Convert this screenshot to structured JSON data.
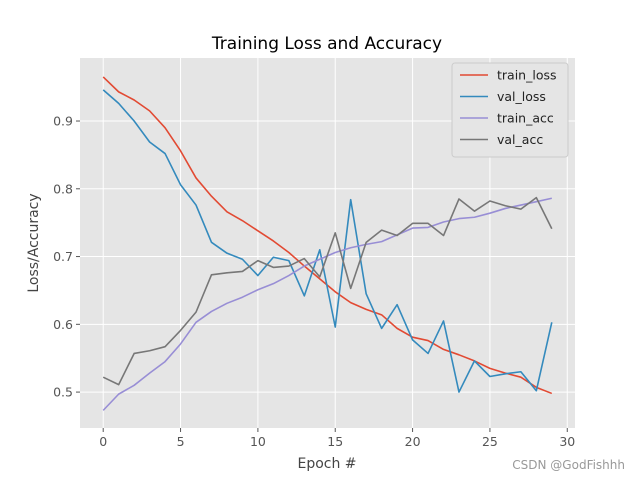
{
  "chart_data": {
    "type": "line",
    "title": "Training Loss and Accuracy",
    "xlabel": "Epoch #",
    "ylabel": "Loss/Accuracy",
    "xlim": [
      -1.5,
      30.5
    ],
    "ylim": [
      0.447,
      0.993
    ],
    "xticks": [
      "0",
      "5",
      "10",
      "15",
      "20",
      "25",
      "30"
    ],
    "yticks": [
      "0.5",
      "0.6",
      "0.7",
      "0.8",
      "0.9"
    ],
    "grid": true,
    "legend_position": "top-right",
    "x": [
      0,
      1,
      2,
      3,
      4,
      5,
      6,
      7,
      8,
      9,
      10,
      11,
      12,
      13,
      14,
      15,
      16,
      17,
      18,
      19,
      20,
      21,
      22,
      23,
      24,
      25,
      26,
      27,
      28,
      29
    ],
    "series": [
      {
        "name": "train_loss",
        "color": "#E24A33",
        "values": [
          0.965,
          0.943,
          0.931,
          0.915,
          0.89,
          0.856,
          0.816,
          0.789,
          0.766,
          0.753,
          0.738,
          0.723,
          0.706,
          0.686,
          0.667,
          0.648,
          0.632,
          0.622,
          0.614,
          0.594,
          0.581,
          0.576,
          0.563,
          0.555,
          0.546,
          0.535,
          0.528,
          0.522,
          0.507,
          0.498
        ]
      },
      {
        "name": "val_loss",
        "color": "#348ABD",
        "values": [
          0.946,
          0.926,
          0.9,
          0.869,
          0.852,
          0.806,
          0.776,
          0.721,
          0.705,
          0.696,
          0.672,
          0.699,
          0.694,
          0.642,
          0.71,
          0.596,
          0.784,
          0.645,
          0.594,
          0.629,
          0.577,
          0.557,
          0.605,
          0.5,
          0.546,
          0.523,
          0.527,
          0.53,
          0.502,
          0.603
        ]
      },
      {
        "name": "train_acc",
        "color": "#988ED5",
        "values": [
          0.473,
          0.497,
          0.51,
          0.528,
          0.545,
          0.571,
          0.603,
          0.619,
          0.631,
          0.64,
          0.651,
          0.66,
          0.672,
          0.686,
          0.696,
          0.706,
          0.713,
          0.718,
          0.722,
          0.732,
          0.742,
          0.743,
          0.751,
          0.756,
          0.758,
          0.764,
          0.771,
          0.776,
          0.781,
          0.786
        ]
      },
      {
        "name": "val_acc",
        "color": "#777777",
        "values": [
          0.522,
          0.511,
          0.557,
          0.561,
          0.567,
          0.591,
          0.618,
          0.673,
          0.676,
          0.678,
          0.694,
          0.684,
          0.686,
          0.697,
          0.67,
          0.735,
          0.653,
          0.721,
          0.739,
          0.731,
          0.749,
          0.749,
          0.731,
          0.785,
          0.767,
          0.782,
          0.775,
          0.77,
          0.787,
          0.741
        ]
      }
    ]
  },
  "colors": {
    "plot_background": "#E5E5E5",
    "grid": "#FFFFFF",
    "legend_background": "#E5E5E5",
    "legend_border": "#CCCCCC"
  },
  "watermark": "CSDN @GodFishhh"
}
